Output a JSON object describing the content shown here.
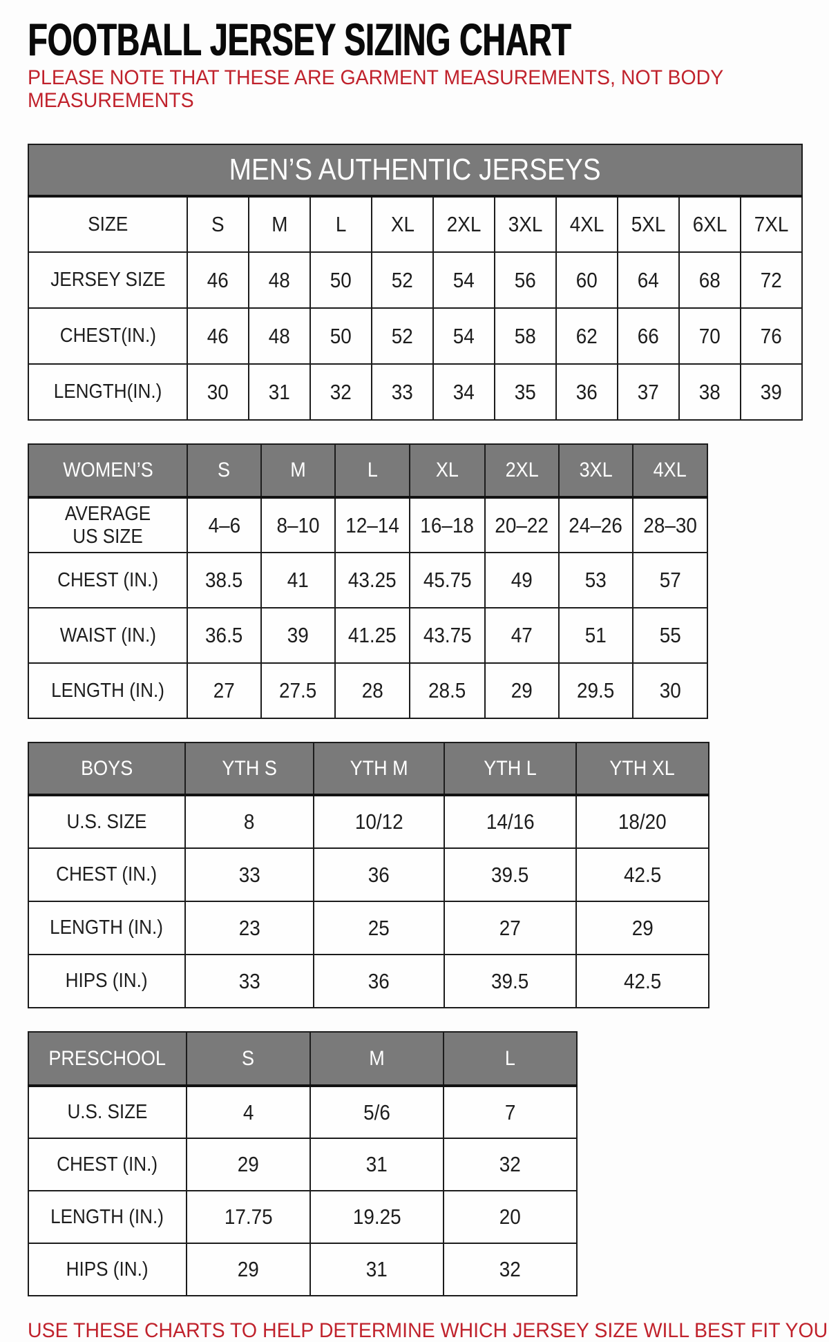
{
  "page": {
    "title": "FOOTBALL JERSEY SIZING CHART",
    "note": "PLEASE NOTE THAT THESE ARE GARMENT MEASUREMENTS, NOT BODY\nMEASUREMENTS",
    "footer": "USE THESE CHARTS TO HELP DETERMINE WHICH JERSEY SIZE WILL BEST FIT YOU."
  },
  "colors": {
    "accent_red": "#c0222c",
    "header_gray": "#7a7a7a",
    "border_black": "#1c1c1c",
    "header_text": "#ffffff"
  },
  "chart_data": [
    {
      "type": "table",
      "title": "MEN’S AUTHENTIC JERSEYS",
      "banner": "MEN’S AUTHENTIC JERSEYS",
      "rows": [
        [
          "SIZE",
          "S",
          "M",
          "L",
          "XL",
          "2XL",
          "3XL",
          "4XL",
          "5XL",
          "6XL",
          "7XL"
        ],
        [
          "JERSEY SIZE",
          "46",
          "48",
          "50",
          "52",
          "54",
          "56",
          "60",
          "64",
          "68",
          "72"
        ],
        [
          "CHEST(IN.)",
          "46",
          "48",
          "50",
          "52",
          "54",
          "58",
          "62",
          "66",
          "70",
          "76"
        ],
        [
          "LENGTH(IN.)",
          "30",
          "31",
          "32",
          "33",
          "34",
          "35",
          "36",
          "37",
          "38",
          "39"
        ]
      ]
    },
    {
      "type": "table",
      "title": "WOMEN’S",
      "header": [
        "WOMEN’S",
        "S",
        "M",
        "L",
        "XL",
        "2XL",
        "3XL",
        "4XL"
      ],
      "rows": [
        [
          "AVERAGE\nUS SIZE",
          "4–6",
          "8–10",
          "12–14",
          "16–18",
          "20–22",
          "24–26",
          "28–30"
        ],
        [
          "CHEST (IN.)",
          "38.5",
          "41",
          "43.25",
          "45.75",
          "49",
          "53",
          "57"
        ],
        [
          "WAIST (IN.)",
          "36.5",
          "39",
          "41.25",
          "43.75",
          "47",
          "51",
          "55"
        ],
        [
          "LENGTH (IN.)",
          "27",
          "27.5",
          "28",
          "28.5",
          "29",
          "29.5",
          "30"
        ]
      ]
    },
    {
      "type": "table",
      "title": "BOYS",
      "header": [
        "BOYS",
        "YTH S",
        "YTH M",
        "YTH L",
        "YTH XL"
      ],
      "rows": [
        [
          "U.S. SIZE",
          "8",
          "10/12",
          "14/16",
          "18/20"
        ],
        [
          "CHEST (IN.)",
          "33",
          "36",
          "39.5",
          "42.5"
        ],
        [
          "LENGTH (IN.)",
          "23",
          "25",
          "27",
          "29"
        ],
        [
          "HIPS (IN.)",
          "33",
          "36",
          "39.5",
          "42.5"
        ]
      ]
    },
    {
      "type": "table",
      "title": "PRESCHOOL",
      "header": [
        "PRESCHOOL",
        "S",
        "M",
        "L"
      ],
      "rows": [
        [
          "U.S. SIZE",
          "4",
          "5/6",
          "7"
        ],
        [
          "CHEST (IN.)",
          "29",
          "31",
          "32"
        ],
        [
          "LENGTH (IN.)",
          "17.75",
          "19.25",
          "20"
        ],
        [
          "HIPS (IN.)",
          "29",
          "31",
          "32"
        ]
      ]
    }
  ]
}
